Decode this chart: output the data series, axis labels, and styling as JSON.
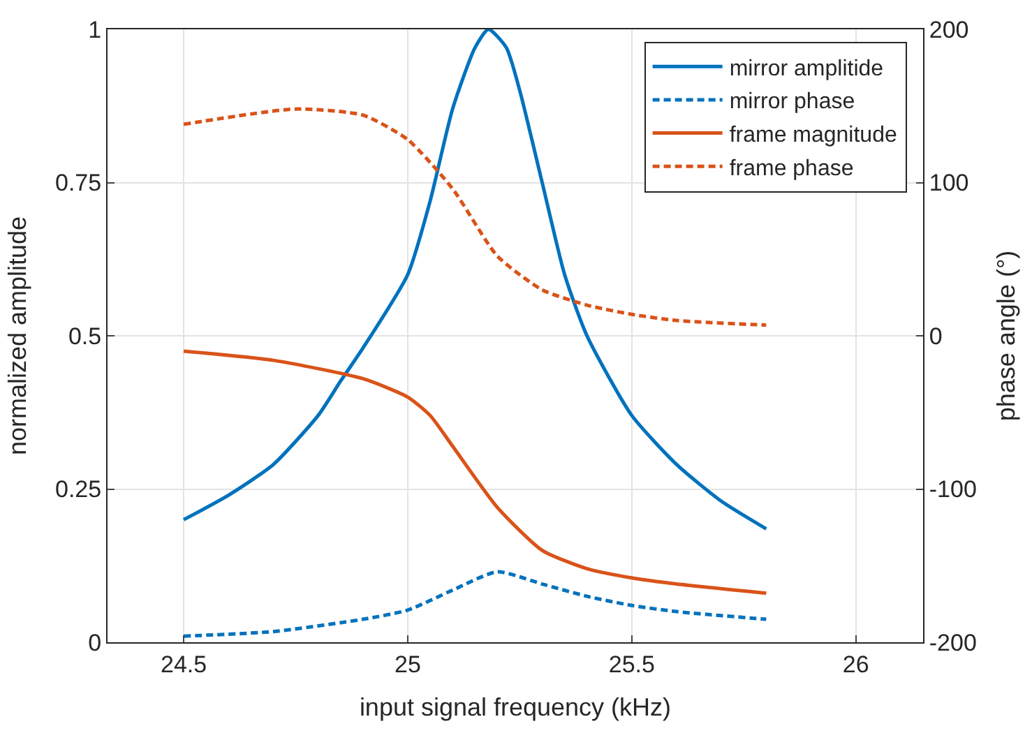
{
  "chart_data": {
    "type": "line",
    "xlabel": "input signal frequency (kHz)",
    "ylabel": "normalized amplitude",
    "y2label": "phase angle (°)",
    "xlim": [
      24.33,
      26.15
    ],
    "xticks": [
      24.5,
      25,
      25.5,
      26
    ],
    "ylim": [
      0,
      1
    ],
    "yticks": [
      0,
      0.25,
      0.5,
      0.75,
      1
    ],
    "y2lim": [
      -200,
      200
    ],
    "y2ticks": [
      -200,
      -100,
      0,
      100,
      200
    ],
    "grid": true,
    "legend": "top right",
    "marker": "none",
    "series": [
      {
        "name": "mirror amplitide",
        "color": "#0072bd",
        "line_style": "solid",
        "x": [
          24.5,
          24.6,
          24.7,
          24.8,
          24.85,
          24.9,
          25.0,
          25.05,
          25.1,
          25.15,
          25.18,
          25.22,
          25.25,
          25.3,
          25.35,
          25.4,
          25.5,
          25.6,
          25.7,
          25.8
        ],
        "values": [
          0.2,
          0.24,
          0.29,
          0.37,
          0.426,
          0.48,
          0.6,
          0.72,
          0.87,
          0.97,
          1.0,
          0.97,
          0.9,
          0.75,
          0.6,
          0.5,
          0.37,
          0.29,
          0.23,
          0.185
        ]
      },
      {
        "name": "mirror phase",
        "color": "#0072bd",
        "line_style": "dashed",
        "axis": "y2",
        "x": [
          24.5,
          24.7,
          24.9,
          25.0,
          25.1,
          25.2,
          25.3,
          25.4,
          25.5,
          25.6,
          25.8
        ],
        "values": [
          -196,
          -193,
          -185,
          -179,
          -166,
          -154,
          -162,
          -170,
          -176,
          -180,
          -185
        ]
      },
      {
        "name": "frame magnitude",
        "color": "#d95319",
        "line_style": "solid",
        "x": [
          24.5,
          24.7,
          24.9,
          25.0,
          25.05,
          25.1,
          25.2,
          25.3,
          25.4,
          25.5,
          25.6,
          25.8
        ],
        "values": [
          0.475,
          0.46,
          0.43,
          0.4,
          0.37,
          0.32,
          0.22,
          0.15,
          0.12,
          0.105,
          0.095,
          0.08
        ]
      },
      {
        "name": "frame phase",
        "color": "#d95319",
        "line_style": "dashed",
        "axis": "y2",
        "x": [
          24.5,
          24.75,
          24.9,
          25.0,
          25.1,
          25.2,
          25.3,
          25.4,
          25.5,
          25.6,
          25.8
        ],
        "values": [
          138,
          148,
          144,
          128,
          96,
          52,
          30,
          20,
          14,
          10,
          7
        ]
      }
    ]
  }
}
